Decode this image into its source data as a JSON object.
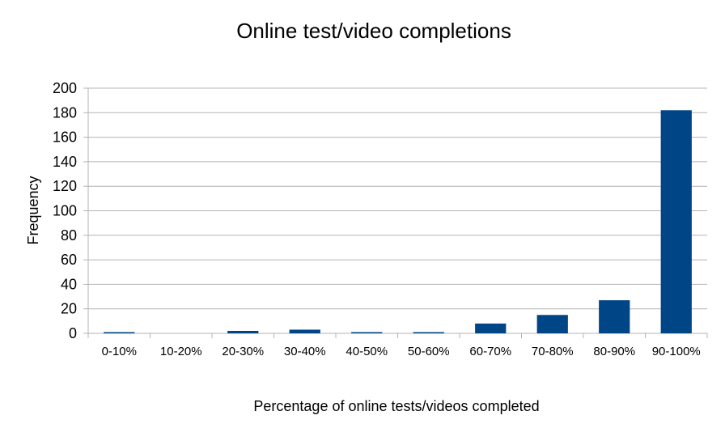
{
  "chart_data": {
    "type": "bar",
    "title": "Online test/video completions",
    "xlabel": "Percentage of online tests/videos completed",
    "ylabel": "Frequency",
    "categories": [
      "0-10%",
      "10-20%",
      "20-30%",
      "30-40%",
      "40-50%",
      "50-60%",
      "60-70%",
      "70-80%",
      "80-90%",
      "90-100%"
    ],
    "values": [
      1,
      0,
      2,
      3,
      1,
      1,
      8,
      15,
      27,
      182
    ],
    "ylim": [
      0,
      200
    ],
    "yticks": [
      0,
      20,
      40,
      60,
      80,
      100,
      120,
      140,
      160,
      180,
      200
    ],
    "grid": true,
    "legend": "none",
    "colors": {
      "bar": "#004586",
      "grid": "#b3b3b3",
      "axis": "#b3b3b3"
    }
  }
}
